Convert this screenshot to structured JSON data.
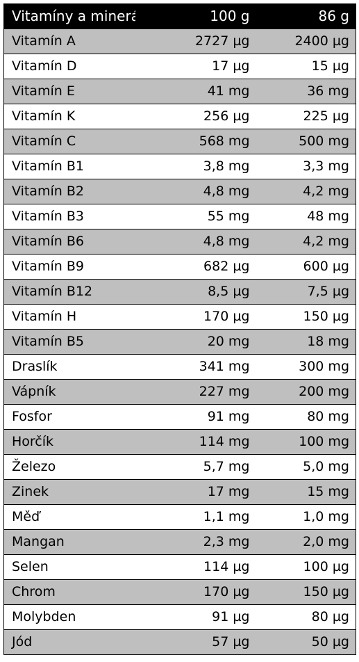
{
  "header": {
    "name": "Vitamíny a minerály",
    "col_a": "100 g",
    "col_b": "86 g"
  },
  "rows": [
    {
      "name": "Vitamín A",
      "a": "2727 µg",
      "b": "2400 µg"
    },
    {
      "name": "Vitamín D",
      "a": "17 µg",
      "b": "15 µg"
    },
    {
      "name": "Vitamín E",
      "a": "41 mg",
      "b": "36 mg"
    },
    {
      "name": "Vitamín K",
      "a": "256 µg",
      "b": "225 µg"
    },
    {
      "name": "Vitamín C",
      "a": "568 mg",
      "b": "500 mg"
    },
    {
      "name": "Vitamín B1",
      "a": "3,8 mg",
      "b": "3,3 mg"
    },
    {
      "name": "Vitamín B2",
      "a": "4,8 mg",
      "b": "4,2 mg"
    },
    {
      "name": "Vitamín B3",
      "a": "55 mg",
      "b": "48 mg"
    },
    {
      "name": "Vitamín B6",
      "a": "4,8 mg",
      "b": "4,2 mg"
    },
    {
      "name": "Vitamín B9",
      "a": "682 µg",
      "b": "600 µg"
    },
    {
      "name": "Vitamín B12",
      "a": "8,5 µg",
      "b": "7,5 µg"
    },
    {
      "name": "Vitamín H",
      "a": "170 µg",
      "b": "150 µg"
    },
    {
      "name": "Vitamín B5",
      "a": "20 mg",
      "b": "18 mg"
    },
    {
      "name": "Draslík",
      "a": "341 mg",
      "b": "300 mg"
    },
    {
      "name": "Vápník",
      "a": "227 mg",
      "b": "200 mg"
    },
    {
      "name": "Fosfor",
      "a": "91 mg",
      "b": "80 mg"
    },
    {
      "name": "Horčík",
      "a": "114 mg",
      "b": "100 mg"
    },
    {
      "name": "Železo",
      "a": "5,7 mg",
      "b": "5,0 mg"
    },
    {
      "name": "Zinek",
      "a": "17 mg",
      "b": "15 mg"
    },
    {
      "name": "Měď",
      "a": "1,1 mg",
      "b": "1,0 mg"
    },
    {
      "name": "Mangan",
      "a": "2,3 mg",
      "b": "2,0 mg"
    },
    {
      "name": "Selen",
      "a": "114 µg",
      "b": "100 µg"
    },
    {
      "name": "Chrom",
      "a": "170 µg",
      "b": "150 µg"
    },
    {
      "name": "Molybden",
      "a": "91 µg",
      "b": "80 µg"
    },
    {
      "name": "Jód",
      "a": "57 µg",
      "b": "50 µg"
    }
  ],
  "colors": {
    "header_bg": "#000000",
    "header_text": "#ffffff",
    "stripe": "#bfbfbf",
    "border": "#000000"
  }
}
